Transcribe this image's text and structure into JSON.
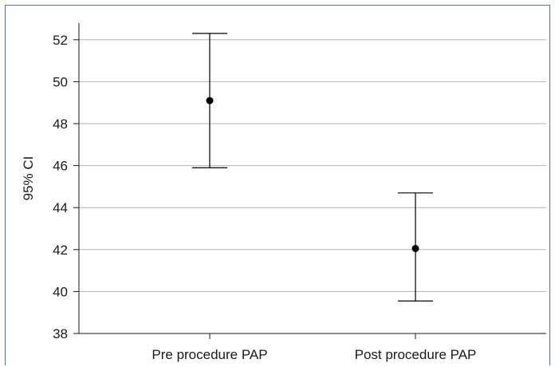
{
  "chart_data": {
    "type": "scatter",
    "title": "",
    "xlabel": "",
    "ylabel": "95% CI",
    "categories": [
      "Pre procedure PAP",
      "Post procedure PAP"
    ],
    "points": [
      {
        "category": "Pre procedure PAP",
        "mean": 49.1,
        "lower": 45.9,
        "upper": 52.3
      },
      {
        "category": "Post procedure PAP",
        "mean": 42.05,
        "lower": 39.55,
        "upper": 44.7
      }
    ],
    "ylim": [
      38,
      53
    ],
    "yticks": [
      38,
      40,
      42,
      44,
      46,
      48,
      50,
      52
    ],
    "grid": true,
    "legend": "none"
  },
  "colors": {
    "frame": "#4a6fb5",
    "gridline": "#b3b3b3",
    "axis": "#1a1a1a",
    "marker": "#000000"
  }
}
